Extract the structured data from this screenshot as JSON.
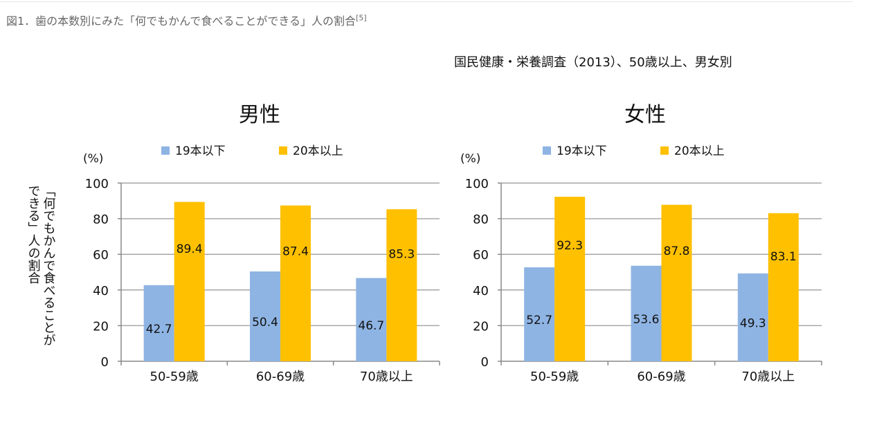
{
  "caption": {
    "text": "図1．歯の本数別にみた「何でもかんで食べることができる」人の割合",
    "ref": "[5]"
  },
  "source_note": "国民健康・栄養調査（2013）、50歳以上、男女別",
  "colors": {
    "series_low": "#8EB4E3",
    "series_high": "#FFC000",
    "axis": "#888888",
    "grid": "#A6A6A6"
  },
  "chart_data": [
    {
      "type": "bar",
      "title": "男性",
      "unit_label": "(%)",
      "ylabel": "「何でもかんで食べることができる」人の割合",
      "ylim": [
        0,
        100
      ],
      "yticks": [
        0,
        20,
        40,
        60,
        80,
        100
      ],
      "categories": [
        "50-59歳",
        "60-69歳",
        "70歳以上"
      ],
      "series": [
        {
          "name": "19本以下",
          "values": [
            42.7,
            50.4,
            46.7
          ]
        },
        {
          "name": "20本以上",
          "values": [
            89.4,
            87.4,
            85.3
          ]
        }
      ]
    },
    {
      "type": "bar",
      "title": "女性",
      "unit_label": "(%)",
      "ylim": [
        0,
        100
      ],
      "yticks": [
        0,
        20,
        40,
        60,
        80,
        100
      ],
      "categories": [
        "50-59歳",
        "60-69歳",
        "70歳以上"
      ],
      "series": [
        {
          "name": "19本以下",
          "values": [
            52.7,
            53.6,
            49.3
          ]
        },
        {
          "name": "20本以上",
          "values": [
            92.3,
            87.8,
            83.1
          ]
        }
      ]
    }
  ]
}
